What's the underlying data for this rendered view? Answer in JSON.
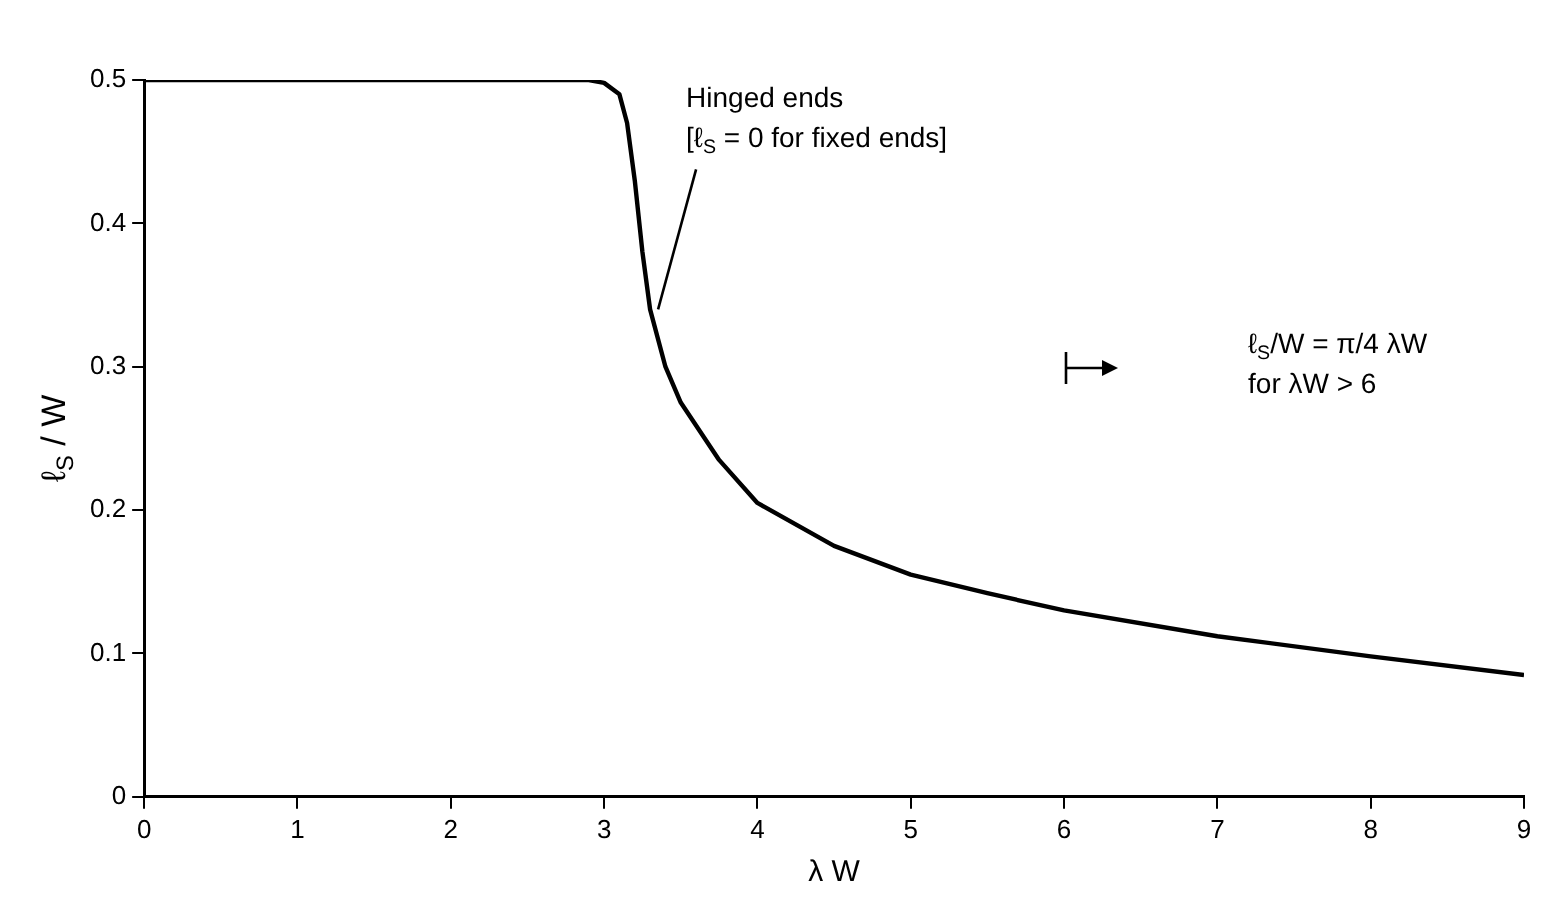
{
  "chart_data": {
    "type": "line",
    "xlabel": "λ W",
    "ylabel": "ℓ$_{S}$ / W",
    "x": [
      0,
      1,
      2,
      2.9,
      3.0,
      3.1,
      3.15,
      3.2,
      3.25,
      3.3,
      3.4,
      3.5,
      3.75,
      4,
      4.5,
      5,
      5.5,
      6,
      7,
      8,
      9
    ],
    "series": [
      {
        "color": "#000000",
        "values": [
          0.5,
          0.5,
          0.5,
          0.5,
          0.498,
          0.49,
          0.47,
          0.43,
          0.38,
          0.34,
          0.3,
          0.275,
          0.235,
          0.205,
          0.175,
          0.155,
          0.142,
          0.13,
          0.112,
          0.098,
          0.085
        ]
      }
    ],
    "xlim": [
      0,
      9
    ],
    "xticks": [
      0,
      1,
      2,
      3,
      4,
      5,
      6,
      7,
      8,
      9
    ],
    "ylim": [
      0,
      0.5
    ],
    "yticks": [
      0,
      0.1,
      0.2,
      0.3,
      0.4,
      0.5
    ],
    "grid": false,
    "legend": false,
    "marker": "none",
    "line_style": "solid",
    "annotations": [
      {
        "text": "Hinged ends\n[ℓ$_{S}$ = 0 for fixed ends]",
        "x": 3.3,
        "y": 0.34
      },
      "ℓ$_{S}$/W = π/4 λW\nfor λW > 6"
    ]
  }
}
